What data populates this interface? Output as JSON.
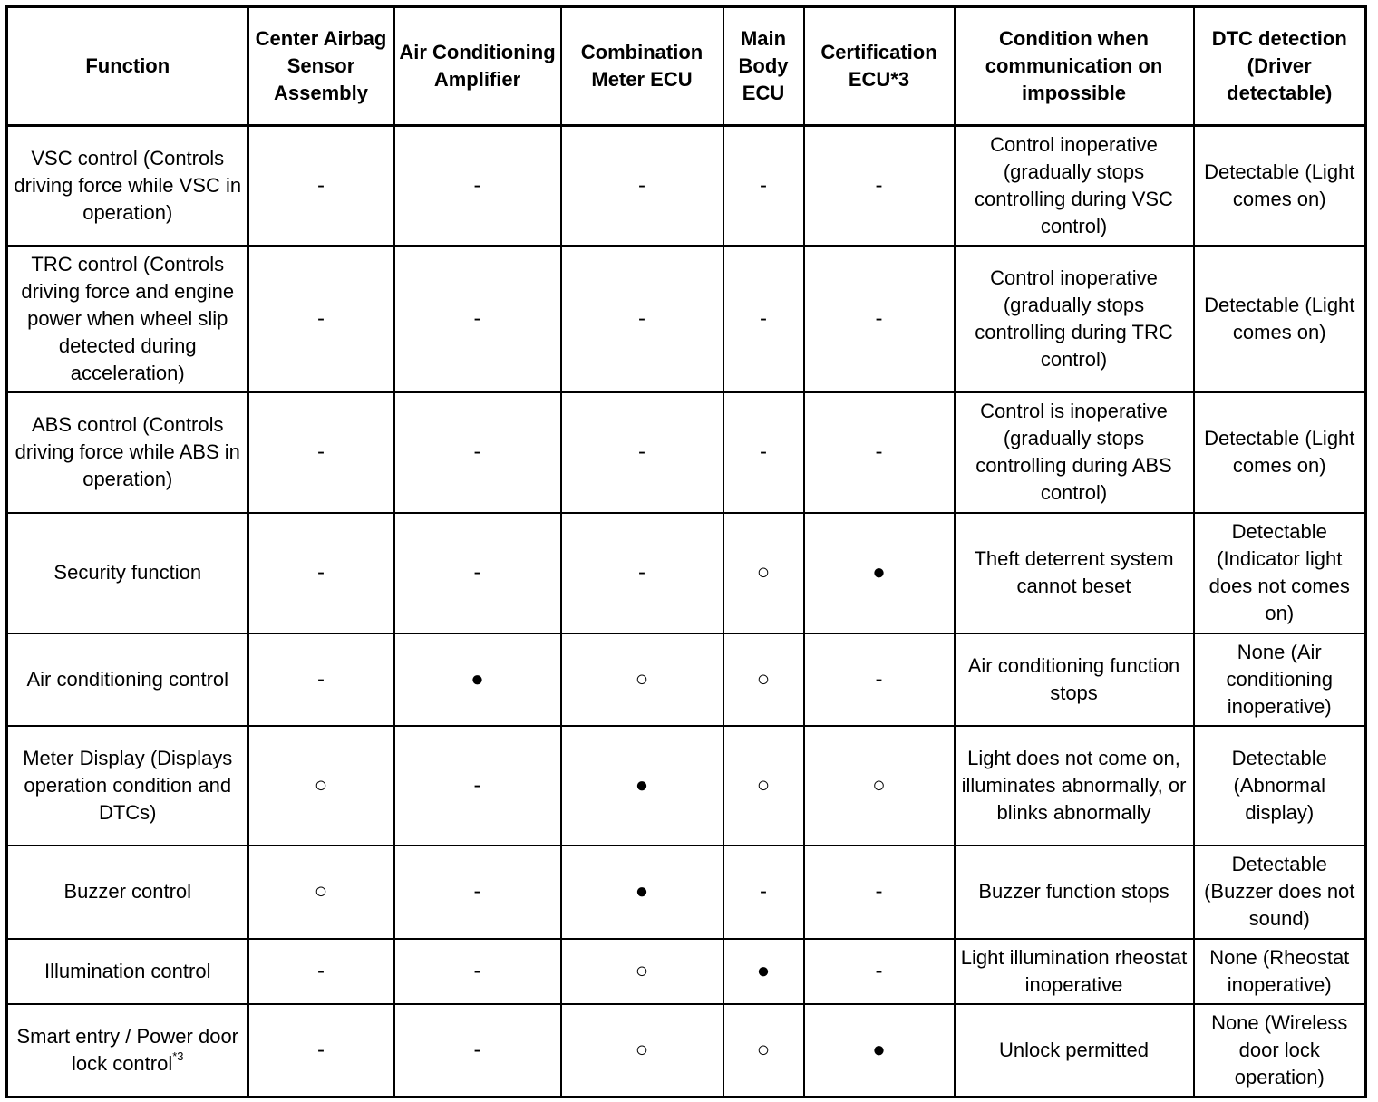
{
  "table": {
    "header": [
      "Function",
      "Center Airbag Sensor Assembly",
      "Air Conditioning Amplifier",
      "Combination Meter ECU",
      "Main Body ECU",
      "Certification ECU*3",
      "Condition when communication on impossible",
      "DTC detection (Driver detectable)"
    ],
    "rows": [
      [
        "VSC control (Controls driving force while VSC in operation)",
        "-",
        "-",
        "-",
        "-",
        "-",
        "Control inoperative (gradually stops controlling during VSC control)",
        "Detectable (Light comes on)"
      ],
      [
        "TRC control (Controls driving force and engine power when wheel slip detected during acceleration)",
        "-",
        "-",
        "-",
        "-",
        "-",
        "Control inoperative (gradually stops controlling during TRC control)",
        "Detectable (Light comes on)"
      ],
      [
        "ABS control (Controls driving force while ABS in operation)",
        "-",
        "-",
        "-",
        "-",
        "-",
        "Control is inoperative (gradually stops controlling during ABS control)",
        "Detectable (Light comes on)"
      ],
      [
        "Security function",
        "-",
        "-",
        "-",
        "○",
        "●",
        "Theft deterrent system cannot beset",
        "Detectable (Indicator light does not comes on)"
      ],
      [
        "Air conditioning control",
        "-",
        "●",
        "○",
        "○",
        "-",
        "Air conditioning function stops",
        "None (Air conditioning inoperative)"
      ],
      [
        "Meter Display (Displays operation condition and DTCs)",
        "○",
        "-",
        "●",
        "○",
        "○",
        "Light does not come on, illuminates abnormally, or blinks abnormally",
        "Detectable (Abnormal display)"
      ],
      [
        "Buzzer control",
        "○",
        "-",
        "●",
        "-",
        "-",
        "Buzzer function stops",
        "Detectable (Buzzer does not sound)"
      ],
      [
        "Illumination control",
        "-",
        "-",
        "○",
        "●",
        "-",
        "Light illumination rheostat inoperative",
        "None (Rheostat inoperative)"
      ],
      [
        {
          "text": "Smart entry / Power door lock control",
          "note": "*3"
        },
        "-",
        "-",
        "○",
        "○",
        "●",
        "Unlock permitted",
        "None (Wireless door lock operation)"
      ]
    ]
  }
}
